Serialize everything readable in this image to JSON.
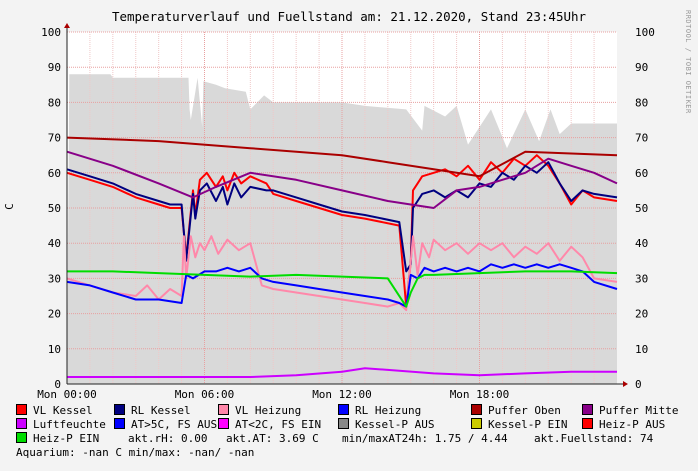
{
  "header": {
    "title": "Temperaturverlauf und Fuellstand am: 21.12.2020, Stand 23:45Uhr",
    "side_label": "RRDTOOL / TOBI OETIKER"
  },
  "chart_data": {
    "type": "line",
    "title": "Temperaturverlauf und Fuellstand am: 21.12.2020, Stand 23:45Uhr",
    "ylabel": "C",
    "ylim": [
      0,
      100
    ],
    "yticks": [
      "0",
      "10",
      "20",
      "30",
      "40",
      "50",
      "60",
      "70",
      "80",
      "90",
      "100"
    ],
    "xlim": [
      0,
      24
    ],
    "xticks": [
      {
        "x": 0,
        "label": "Mon 00:00"
      },
      {
        "x": 6,
        "label": "Mon 06:00"
      },
      {
        "x": 12,
        "label": "Mon 12:00"
      },
      {
        "x": 18,
        "label": "Mon 18:00"
      }
    ],
    "grid": true,
    "series": [
      {
        "name": "Fuellstand (area)",
        "color": "#d9d9d9",
        "type": "area",
        "x": [
          0,
          0.1,
          1.9,
          2,
          5.3,
          5.35,
          5.4,
          5.7,
          5.9,
          5.95,
          6.5,
          6.9,
          7.8,
          8.0,
          8.6,
          9.0,
          12.0,
          13.0,
          14.8,
          15.5,
          15.6,
          16.5,
          17.0,
          17.5,
          18.5,
          19.2,
          20.0,
          20.6,
          21.1,
          21.5,
          22.0,
          23.0,
          24.0
        ],
        "y": [
          0,
          88,
          88,
          87,
          87,
          78,
          75,
          87,
          73,
          86,
          85,
          84,
          83,
          78,
          82,
          80,
          80,
          79,
          78,
          72,
          79,
          76,
          79,
          68,
          78,
          67,
          78,
          69,
          78,
          71,
          74,
          74,
          74
        ]
      },
      {
        "name": "VL Kessel",
        "color": "#ff0000",
        "x": [
          0,
          1,
          2,
          3,
          4,
          4.5,
          5.0,
          5.2,
          5.5,
          5.6,
          5.8,
          6.1,
          6.5,
          6.8,
          7.0,
          7.3,
          7.6,
          8.0,
          8.7,
          9,
          10,
          11,
          12,
          13,
          14.5,
          14.8,
          15.0,
          15.1,
          15.3,
          15.5,
          16,
          16.5,
          17,
          17.5,
          18,
          18.5,
          19,
          19.5,
          20,
          20.5,
          21,
          21.5,
          22,
          22.5,
          23,
          24
        ],
        "y": [
          60,
          58,
          56,
          53,
          51,
          50,
          50,
          36,
          55,
          48,
          58,
          60,
          56,
          59,
          55,
          60,
          57,
          59,
          57,
          54,
          52,
          50,
          48,
          47,
          45,
          22,
          35,
          55,
          57,
          59,
          60,
          61,
          59,
          62,
          58,
          63,
          60,
          64,
          62,
          65,
          62,
          57,
          51,
          55,
          53,
          52
        ]
      },
      {
        "name": "RL Kessel",
        "color": "#000080",
        "x": [
          0,
          1,
          2,
          3,
          4,
          4.5,
          5.0,
          5.2,
          5.5,
          5.6,
          5.8,
          6.1,
          6.5,
          6.8,
          7.0,
          7.3,
          7.6,
          8.0,
          8.7,
          9,
          10,
          11,
          12,
          13,
          14.5,
          14.8,
          15.0,
          15.1,
          15.3,
          15.5,
          16,
          16.5,
          17,
          17.5,
          18,
          18.5,
          19,
          19.5,
          20,
          20.5,
          21,
          21.5,
          22,
          22.5,
          23,
          24
        ],
        "y": [
          61,
          59,
          57,
          54,
          52,
          51,
          51,
          35,
          54,
          47,
          55,
          57,
          52,
          56,
          51,
          57,
          53,
          56,
          55,
          55,
          53,
          51,
          49,
          48,
          46,
          32,
          34,
          50,
          52,
          54,
          55,
          53,
          55,
          53,
          57,
          56,
          60,
          58,
          62,
          60,
          63,
          57,
          52,
          55,
          54,
          53
        ]
      },
      {
        "name": "VL Heizung",
        "color": "#ff88aa",
        "x": [
          0,
          1,
          2,
          3,
          3.5,
          4,
          4.5,
          5,
          5.1,
          5.2,
          5.4,
          5.6,
          5.8,
          6.0,
          6.3,
          6.6,
          7,
          7.5,
          8,
          8.5,
          9,
          10,
          11,
          12,
          13,
          14,
          14.5,
          14.8,
          15.0,
          15.1,
          15.3,
          15.5,
          15.8,
          16,
          16.5,
          17,
          17.5,
          18,
          18.5,
          19,
          19.5,
          20,
          20.5,
          21,
          21.5,
          22,
          22.5,
          23,
          24
        ],
        "y": [
          30,
          28,
          26,
          25,
          28,
          24,
          27,
          25,
          42,
          30,
          42,
          36,
          40,
          38,
          42,
          37,
          41,
          38,
          40,
          28,
          27,
          26,
          25,
          24,
          23,
          22,
          23,
          21,
          35,
          42,
          31,
          40,
          36,
          41,
          38,
          40,
          37,
          40,
          38,
          40,
          36,
          39,
          37,
          40,
          35,
          39,
          36,
          30,
          29
        ]
      },
      {
        "name": "RL Heizung",
        "color": "#0000ff",
        "x": [
          0,
          1,
          2,
          3,
          4,
          5,
          5.2,
          5.5,
          6,
          6.5,
          7,
          7.5,
          8,
          8.5,
          9,
          10,
          11,
          12,
          13,
          14,
          14.5,
          14.8,
          15,
          15.3,
          15.6,
          16,
          16.5,
          17,
          17.5,
          18,
          18.5,
          19,
          19.5,
          20,
          20.5,
          21,
          21.5,
          22,
          22.5,
          23,
          24
        ],
        "y": [
          29,
          28,
          26,
          24,
          24,
          23,
          31,
          30,
          32,
          32,
          33,
          32,
          33,
          30,
          29,
          28,
          27,
          26,
          25,
          24,
          23,
          22,
          31,
          30,
          33,
          32,
          33,
          32,
          33,
          32,
          34,
          33,
          34,
          33,
          34,
          33,
          34,
          33,
          32,
          29,
          27
        ]
      },
      {
        "name": "Puffer Oben",
        "color": "#aa0000",
        "x": [
          0,
          4,
          8,
          12,
          14,
          16,
          18,
          20,
          24
        ],
        "y": [
          70,
          69,
          67,
          65,
          63,
          61,
          59,
          66,
          65
        ]
      },
      {
        "name": "Puffer Mitte",
        "color": "#880088",
        "x": [
          0,
          2,
          4,
          5.5,
          6.5,
          8,
          10,
          12,
          14,
          16,
          17,
          18,
          19,
          20,
          21,
          22,
          23,
          24
        ],
        "y": [
          66,
          62,
          57,
          53,
          56,
          60,
          58,
          55,
          52,
          50,
          55,
          56,
          58,
          60,
          64,
          62,
          60,
          57
        ]
      },
      {
        "name": "Luftfeuchte",
        "color": "#cc00ff",
        "x": [
          0,
          4,
          8,
          10,
          12,
          13,
          14,
          16,
          18,
          20,
          22,
          24
        ],
        "y": [
          2,
          2,
          2,
          2.5,
          3.5,
          4.5,
          4,
          3,
          2.5,
          3,
          3.5,
          3.5
        ]
      },
      {
        "name": "Heiz-P EIN",
        "color": "#00dd00",
        "x": [
          0,
          2,
          4,
          6,
          8,
          10,
          12,
          14,
          14.8,
          15.0,
          15.3,
          15.6,
          16,
          18,
          20,
          22,
          24
        ],
        "y": [
          32,
          32,
          31.5,
          31,
          30.5,
          31,
          30.5,
          30,
          22,
          26,
          30,
          31,
          31,
          31.5,
          32,
          32,
          31.5
        ]
      }
    ]
  },
  "legend": {
    "row1": [
      {
        "label": "VL Kessel",
        "color": "#ff0000"
      },
      {
        "label": "RL Kessel",
        "color": "#000080"
      },
      {
        "label": "VL Heizung",
        "color": "#ff88aa"
      },
      {
        "label": "RL Heizung",
        "color": "#0000ff"
      },
      {
        "label": "Puffer Oben",
        "color": "#aa0000"
      },
      {
        "label": "Puffer Mitte",
        "color": "#880088"
      }
    ],
    "row2": [
      {
        "label": "Luftfeuchte",
        "color": "#cc00ff"
      },
      {
        "label": "AT>5C, FS AUS",
        "color": "#0000ff"
      },
      {
        "label": "AT<2C, FS EIN",
        "color": "#ff00ff"
      },
      {
        "label": "Kessel-P AUS",
        "color": "#888888"
      },
      {
        "label": "Kessel-P EIN",
        "color": "#cccc00"
      },
      {
        "label": "Heiz-P AUS",
        "color": "#ff0000"
      }
    ],
    "row3_item": {
      "label": "Heiz-P EIN",
      "color": "#00dd00"
    },
    "stats": {
      "rh": "akt.rH: 0.00",
      "at": "akt.AT: 3.69 C",
      "minmax": "min/maxAT24h: 1.75 / 4.44",
      "fuell": "akt.Fuellstand:   74"
    },
    "aquarium": "Aquarium: -nan C  min/max: -nan/ -nan"
  }
}
